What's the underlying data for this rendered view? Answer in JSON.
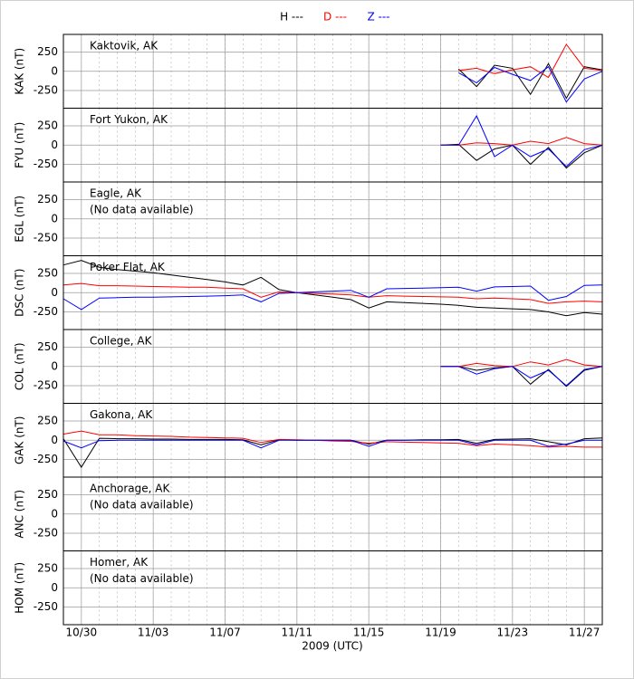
{
  "x_axis": {
    "label": "2009 (UTC)",
    "xlim": [
      "10/29",
      "11/28"
    ],
    "xticks": [
      "10/30",
      "11/03",
      "11/07",
      "11/11",
      "11/15",
      "11/19",
      "11/23",
      "11/27"
    ]
  },
  "chart_data": [
    {
      "type": "line",
      "title": "Kaktovik, AK",
      "ylabel": "KAK (nT)",
      "ylim": [
        -480,
        480
      ],
      "yticks": [
        -250,
        0,
        250
      ],
      "x": [
        "11/20",
        "11/21",
        "11/22",
        "11/23",
        "11/24",
        "11/25",
        "11/26",
        "11/27",
        "11/28"
      ],
      "series": [
        {
          "name": "H ---",
          "color": "#000000",
          "values": [
            30,
            -200,
            80,
            40,
            -300,
            100,
            -350,
            60,
            20
          ]
        },
        {
          "name": "D ---",
          "color": "#ff0000",
          "values": [
            10,
            40,
            -30,
            20,
            60,
            -80,
            350,
            40,
            10
          ]
        },
        {
          "name": "Z ---",
          "color": "#0000ff",
          "values": [
            -20,
            -150,
            50,
            -40,
            -120,
            60,
            -400,
            -100,
            0
          ]
        }
      ]
    },
    {
      "type": "line",
      "title": "Fort Yukon, AK",
      "ylabel": "FYU (nT)",
      "ylim": [
        -480,
        480
      ],
      "yticks": [
        -250,
        0,
        250
      ],
      "x": [
        "11/19",
        "11/20",
        "11/21",
        "11/22",
        "11/23",
        "11/24",
        "11/25",
        "11/26",
        "11/27",
        "11/28"
      ],
      "series": [
        {
          "name": "H ---",
          "color": "#000000",
          "values": [
            0,
            10,
            -200,
            -50,
            0,
            -250,
            -30,
            -300,
            -100,
            0
          ]
        },
        {
          "name": "D ---",
          "color": "#ff0000",
          "values": [
            0,
            0,
            30,
            20,
            0,
            50,
            20,
            100,
            20,
            0
          ]
        },
        {
          "name": "Z ---",
          "color": "#0000ff",
          "values": [
            0,
            0,
            380,
            -150,
            0,
            -150,
            -50,
            -280,
            -60,
            0
          ]
        }
      ]
    },
    {
      "type": "line",
      "title": "Eagle, AK",
      "message": "(No data available)",
      "ylabel": "EGL (nT)",
      "ylim": [
        -480,
        480
      ],
      "yticks": [
        -250,
        0,
        250
      ]
    },
    {
      "type": "line",
      "title": "Poker Flat, AK",
      "ylabel": "DSC (nT)",
      "ylim": [
        -480,
        480
      ],
      "yticks": [
        -250,
        0,
        250
      ],
      "x": [
        "10/29",
        "10/30",
        "10/31",
        "11/01",
        "11/02",
        "11/03",
        "11/04",
        "11/05",
        "11/06",
        "11/07",
        "11/08",
        "11/09",
        "11/10",
        "11/11",
        "11/12",
        "11/13",
        "11/14",
        "11/15",
        "11/16",
        "11/17",
        "11/18",
        "11/19",
        "11/20",
        "11/21",
        "11/22",
        "11/23",
        "11/24",
        "11/25",
        "11/26",
        "11/27",
        "11/28"
      ],
      "series": [
        {
          "name": "H ---",
          "color": "#000000",
          "values": [
            360,
            420,
            330,
            300,
            280,
            260,
            230,
            200,
            170,
            140,
            100,
            200,
            40,
            0,
            -30,
            -60,
            -90,
            -200,
            -120,
            -130,
            -140,
            -150,
            -165,
            -190,
            -200,
            -210,
            -220,
            -250,
            -300,
            -260,
            -280
          ]
        },
        {
          "name": "D ---",
          "color": "#ff0000",
          "values": [
            100,
            120,
            90,
            90,
            85,
            80,
            75,
            70,
            70,
            60,
            50,
            -60,
            10,
            0,
            -10,
            -20,
            -30,
            -60,
            -40,
            -45,
            -50,
            -55,
            -60,
            -80,
            -70,
            -80,
            -90,
            -140,
            -120,
            -110,
            -120
          ]
        },
        {
          "name": "Z ---",
          "color": "#0000ff",
          "values": [
            -80,
            -220,
            -70,
            -65,
            -60,
            -60,
            -55,
            -50,
            -45,
            -40,
            -30,
            -120,
            -10,
            0,
            10,
            20,
            30,
            -60,
            50,
            55,
            60,
            65,
            70,
            20,
            75,
            80,
            85,
            -100,
            -50,
            95,
            100
          ]
        }
      ]
    },
    {
      "type": "line",
      "title": "College, AK",
      "ylabel": "COL (nT)",
      "ylim": [
        -480,
        480
      ],
      "yticks": [
        -250,
        0,
        250
      ],
      "x": [
        "11/19",
        "11/20",
        "11/21",
        "11/22",
        "11/23",
        "11/24",
        "11/25",
        "11/26",
        "11/27",
        "11/28"
      ],
      "series": [
        {
          "name": "H ---",
          "color": "#000000",
          "values": [
            0,
            0,
            -50,
            -20,
            0,
            -230,
            -40,
            -260,
            -50,
            0
          ]
        },
        {
          "name": "D ---",
          "color": "#ff0000",
          "values": [
            0,
            0,
            40,
            10,
            0,
            60,
            20,
            90,
            20,
            0
          ]
        },
        {
          "name": "Z ---",
          "color": "#0000ff",
          "values": [
            0,
            0,
            -100,
            -30,
            0,
            -150,
            -50,
            -250,
            -40,
            0
          ]
        }
      ]
    },
    {
      "type": "line",
      "title": "Gakona, AK",
      "ylabel": "GAK (nT)",
      "ylim": [
        -480,
        480
      ],
      "yticks": [
        -250,
        0,
        250
      ],
      "x": [
        "10/29",
        "10/30",
        "10/31",
        "11/01",
        "11/02",
        "11/03",
        "11/04",
        "11/05",
        "11/06",
        "11/07",
        "11/08",
        "11/09",
        "11/10",
        "11/11",
        "11/12",
        "11/13",
        "11/14",
        "11/15",
        "11/16",
        "11/17",
        "11/18",
        "11/19",
        "11/20",
        "11/21",
        "11/22",
        "11/23",
        "11/24",
        "11/25",
        "11/26",
        "11/27",
        "11/28"
      ],
      "series": [
        {
          "name": "H ---",
          "color": "#000000",
          "values": [
            20,
            -350,
            25,
            20,
            20,
            15,
            15,
            10,
            10,
            10,
            5,
            -60,
            5,
            0,
            0,
            0,
            0,
            -50,
            0,
            0,
            5,
            5,
            10,
            -40,
            10,
            15,
            20,
            -20,
            -60,
            20,
            30
          ]
        },
        {
          "name": "D ---",
          "color": "#ff0000",
          "values": [
            80,
            120,
            70,
            70,
            60,
            55,
            50,
            40,
            35,
            30,
            25,
            -30,
            10,
            5,
            0,
            -10,
            -15,
            -40,
            -20,
            -25,
            -30,
            -35,
            -40,
            -70,
            -50,
            -60,
            -70,
            -90,
            -80,
            -90,
            -90
          ]
        },
        {
          "name": "Z ---",
          "color": "#0000ff",
          "values": [
            -10,
            -100,
            -5,
            0,
            0,
            0,
            0,
            0,
            0,
            0,
            0,
            -100,
            0,
            0,
            0,
            0,
            0,
            -80,
            0,
            0,
            0,
            0,
            0,
            -60,
            0,
            0,
            0,
            -80,
            -50,
            0,
            0
          ]
        }
      ]
    },
    {
      "type": "line",
      "title": "Anchorage, AK",
      "message": "(No data available)",
      "ylabel": "ANC (nT)",
      "ylim": [
        -480,
        480
      ],
      "yticks": [
        -250,
        0,
        250
      ]
    },
    {
      "type": "line",
      "title": "Homer, AK",
      "message": "(No data available)",
      "ylabel": "HOM (nT)",
      "ylim": [
        -480,
        480
      ],
      "yticks": [
        -250,
        0,
        250
      ]
    }
  ]
}
